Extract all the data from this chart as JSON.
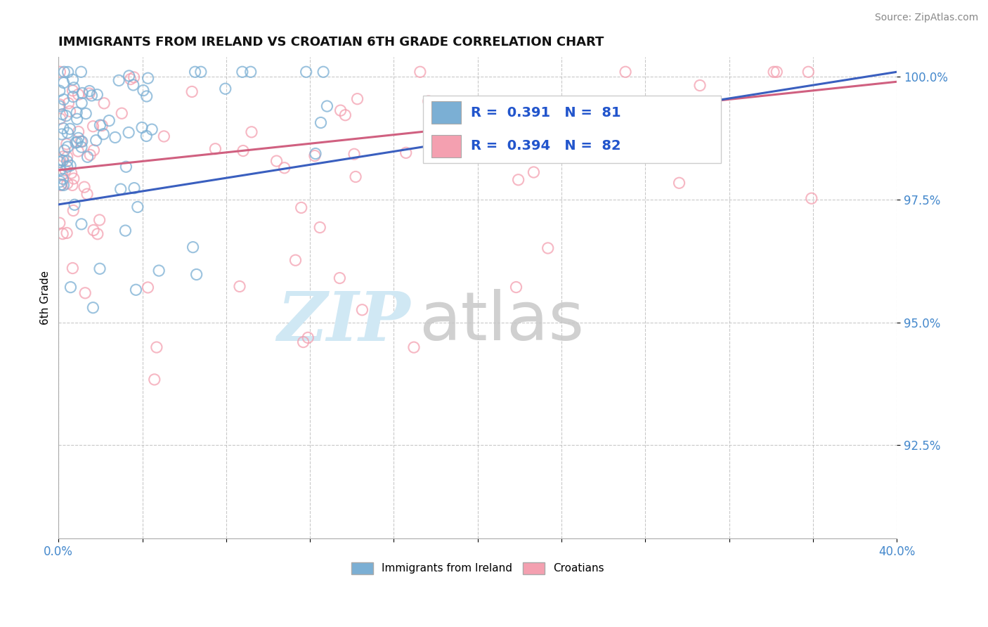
{
  "title": "IMMIGRANTS FROM IRELAND VS CROATIAN 6TH GRADE CORRELATION CHART",
  "source": "Source: ZipAtlas.com",
  "ylabel": "6th Grade",
  "xlim": [
    0.0,
    0.4
  ],
  "ylim": [
    0.906,
    1.004
  ],
  "yticks": [
    0.925,
    0.95,
    0.975,
    1.0
  ],
  "yticklabels": [
    "92.5%",
    "95.0%",
    "97.5%",
    "100.0%"
  ],
  "xtick_positions": [
    0.0,
    0.04,
    0.08,
    0.12,
    0.16,
    0.2,
    0.24,
    0.28,
    0.32,
    0.36,
    0.4
  ],
  "xticklabels": [
    "0.0%",
    "",
    "",
    "",
    "",
    "",
    "",
    "",
    "",
    "",
    "40.0%"
  ],
  "ireland_color": "#7bafd4",
  "croatian_color": "#f4a0b0",
  "ireland_line_color": "#3a5fbf",
  "croatian_line_color": "#d06080",
  "ireland_R": 0.391,
  "ireland_N": 81,
  "croatian_R": 0.394,
  "croatian_N": 82,
  "legend_text_color": "#2255cc",
  "tick_label_color": "#4488cc",
  "watermark_zip_color": "#d0e8f4",
  "watermark_atlas_color": "#c8c8c8"
}
